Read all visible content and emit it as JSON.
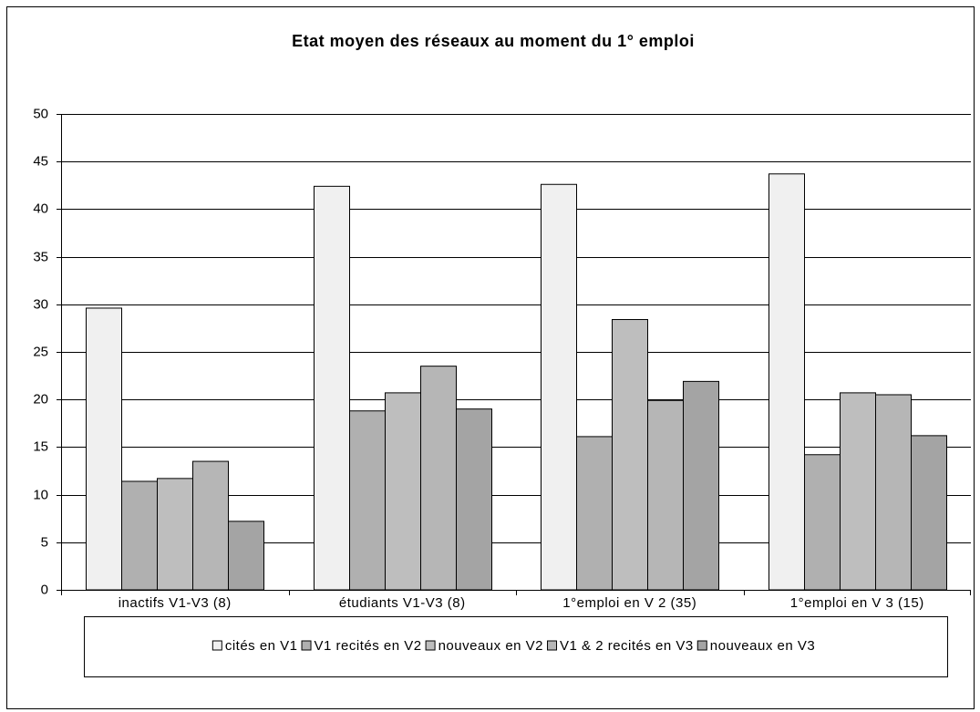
{
  "chart_data": {
    "type": "bar",
    "title": "Etat moyen des réseaux au moment du 1° emploi",
    "categories": [
      "inactifs V1-V3 (8)",
      "étudiants V1-V3 (8)",
      "1°emploi en V 2 (35)",
      "1°emploi en V 3 (15)"
    ],
    "series": [
      {
        "name": "cités en V1",
        "color": "#f0f0f0",
        "values": [
          29.6,
          42.4,
          42.6,
          43.7
        ]
      },
      {
        "name": "V1 recités en V2",
        "color": "#b0b0b0",
        "values": [
          11.4,
          18.8,
          16.1,
          14.2
        ]
      },
      {
        "name": "nouveaux en V2",
        "color": "#bebebe",
        "values": [
          11.7,
          20.7,
          28.4,
          20.7
        ]
      },
      {
        "name": "V1 & 2 recités en V3",
        "color": "#b6b6b6",
        "values": [
          13.5,
          23.5,
          19.9,
          20.5
        ]
      },
      {
        "name": "nouveaux en V3",
        "color": "#a4a4a4",
        "values": [
          7.2,
          19.0,
          21.9,
          16.2
        ]
      }
    ],
    "ylim": [
      0,
      50
    ],
    "yticks": [
      0,
      5,
      10,
      15,
      20,
      25,
      30,
      35,
      40,
      45,
      50
    ],
    "grid": true,
    "legend": "bottom"
  }
}
